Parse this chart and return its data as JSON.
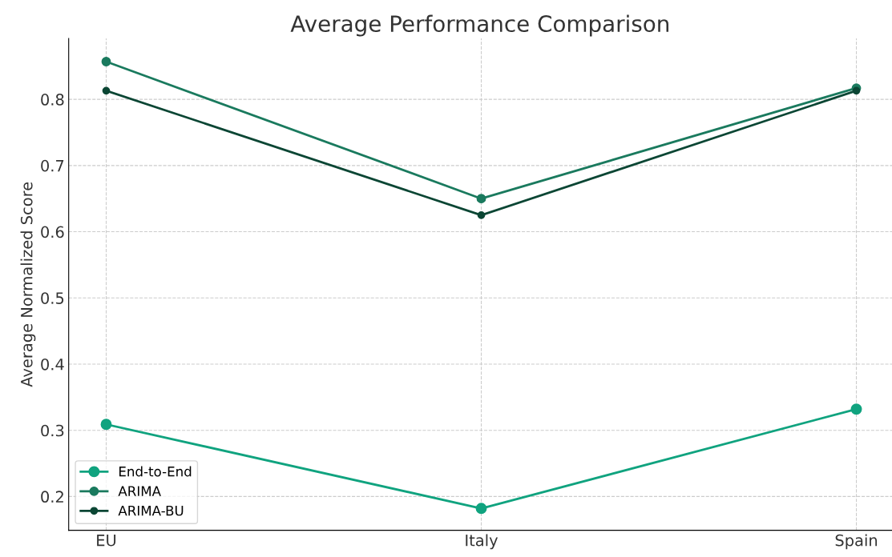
{
  "chart_data": {
    "type": "line",
    "title": "Average Performance Comparison",
    "ylabel": "Average Normalized Score",
    "categories": [
      "EU",
      "Italy",
      "Spain"
    ],
    "series": [
      {
        "name": "End-to-End",
        "color": "#10a37f",
        "values": [
          0.309,
          0.182,
          0.332
        ]
      },
      {
        "name": "ARIMA",
        "color": "#1a7a5e",
        "values": [
          0.857,
          0.65,
          0.817
        ]
      },
      {
        "name": "ARIMA-BU",
        "color": "#0b4634",
        "values": [
          0.813,
          0.625,
          0.813
        ]
      }
    ],
    "ylim": [
      0.149,
      0.892
    ],
    "yticks": [
      0.2,
      0.3,
      0.4,
      0.5,
      0.6,
      0.7,
      0.8
    ],
    "grid": true,
    "legend": "bottom left",
    "marker": "circle",
    "line_style": "solid"
  }
}
